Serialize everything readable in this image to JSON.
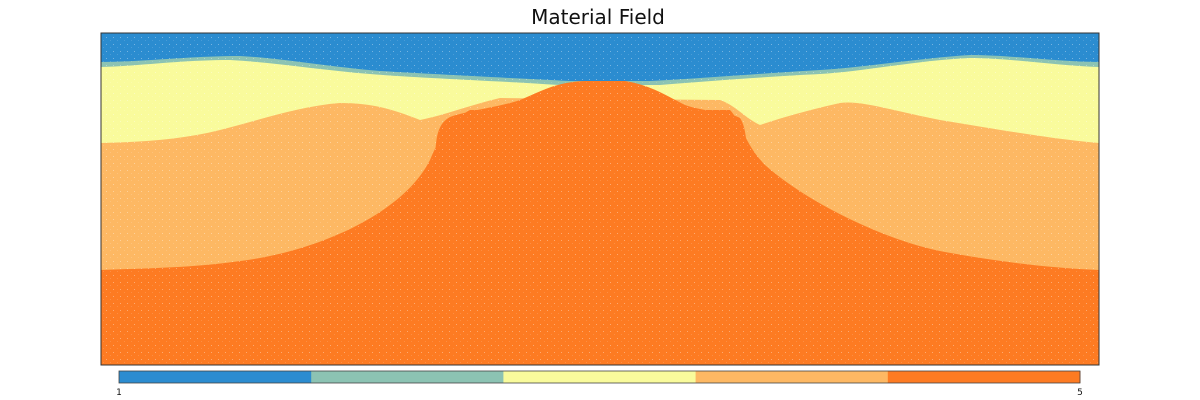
{
  "chart_data": {
    "type": "heatmap",
    "title": "Material Field",
    "xlabel": "",
    "ylabel": "",
    "grid": false,
    "legend": "colorbar-bottom",
    "colorbar": {
      "min_label": "1",
      "max_label": "5",
      "range": [
        1,
        5
      ],
      "categories": [
        {
          "value": 1,
          "color": "#2b8cd0"
        },
        {
          "value": 2,
          "color": "#8cc3b3"
        },
        {
          "value": 3,
          "color": "#f9fb9c"
        },
        {
          "value": 4,
          "color": "#fdb863"
        },
        {
          "value": 5,
          "color": "#fd7b22"
        }
      ]
    },
    "layers": [
      {
        "material": 1,
        "color": "#2b8cd0",
        "position": "top band"
      },
      {
        "material": 2,
        "color": "#8cc3b3",
        "position": "thin rim under top band"
      },
      {
        "material": 3,
        "color": "#f9fb9c",
        "position": "upper layer, pierced by central dome"
      },
      {
        "material": 4,
        "color": "#fdb863",
        "position": "middle flanks"
      },
      {
        "material": 5,
        "color": "#fd7b22",
        "position": "base and central dome"
      }
    ]
  }
}
